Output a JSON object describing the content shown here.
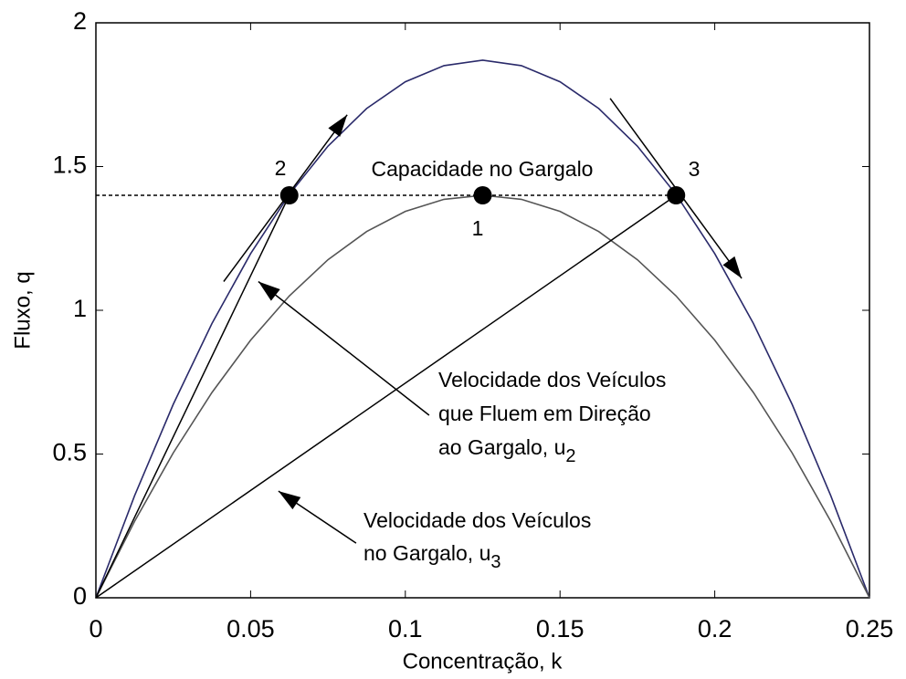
{
  "chart_data": {
    "type": "line",
    "xlabel": "Concentração, k",
    "ylabel": "Fluxo, q",
    "xlim": [
      0,
      0.25
    ],
    "xticks": [
      0,
      0.05,
      0.1,
      0.15,
      0.2,
      0.25
    ],
    "ylim": [
      0,
      2
    ],
    "yticks": [
      0,
      0.5,
      1,
      1.5,
      2
    ],
    "x": [
      0,
      0.0125,
      0.025,
      0.0375,
      0.05,
      0.0625,
      0.075,
      0.0875,
      0.1,
      0.1125,
      0.125,
      0.1375,
      0.15,
      0.1625,
      0.175,
      0.1875,
      0.2,
      0.2125,
      0.225,
      0.2375,
      0.25
    ],
    "series": [
      {
        "color": "#2a2a6a",
        "values": [
          0,
          0.355,
          0.673,
          0.954,
          1.197,
          1.403,
          1.571,
          1.702,
          1.795,
          1.851,
          1.87,
          1.851,
          1.795,
          1.702,
          1.571,
          1.403,
          1.197,
          0.954,
          0.673,
          0.355,
          0
        ]
      },
      {
        "color": "#555555",
        "values": [
          0,
          0.266,
          0.504,
          0.714,
          0.896,
          1.05,
          1.176,
          1.274,
          1.344,
          1.386,
          1.4,
          1.386,
          1.344,
          1.274,
          1.176,
          1.05,
          0.896,
          0.714,
          0.504,
          0.266,
          0
        ]
      }
    ],
    "capacity": {
      "label": "Capacidade no Gargalo",
      "x": [
        0,
        0.1875
      ],
      "y": [
        1.4,
        1.4
      ]
    },
    "chords": [
      {
        "x": [
          0,
          0.0625
        ],
        "y": [
          0,
          1.4
        ]
      },
      {
        "x": [
          0,
          0.1875
        ],
        "y": [
          0,
          1.4
        ]
      }
    ],
    "arrows": [
      {
        "x": [
          0.0413,
          0.0812
        ],
        "y": [
          1.1,
          1.68
        ]
      },
      {
        "x": [
          0.1662,
          0.2087
        ],
        "y": [
          1.737,
          1.111
        ]
      },
      {
        "x": [
          0.1077,
          0.0525
        ],
        "y": [
          0.635,
          1.1
        ]
      },
      {
        "x": [
          0.0841,
          0.059
        ],
        "y": [
          0.19,
          0.371
        ]
      }
    ],
    "points": {
      "x": [
        0.0625,
        0.125,
        0.1875
      ],
      "y": [
        1.4,
        1.4,
        1.4
      ],
      "labels": [
        "2",
        "1",
        "3"
      ]
    },
    "annotations": [
      [
        "Velocidade dos Veículos"
      ],
      [
        "que Fluem em Direção"
      ],
      [
        "ao Gargalo, u",
        "2"
      ],
      [
        "Velocidade dos Veículos"
      ],
      [
        "no Gargalo, u",
        "3"
      ]
    ]
  }
}
